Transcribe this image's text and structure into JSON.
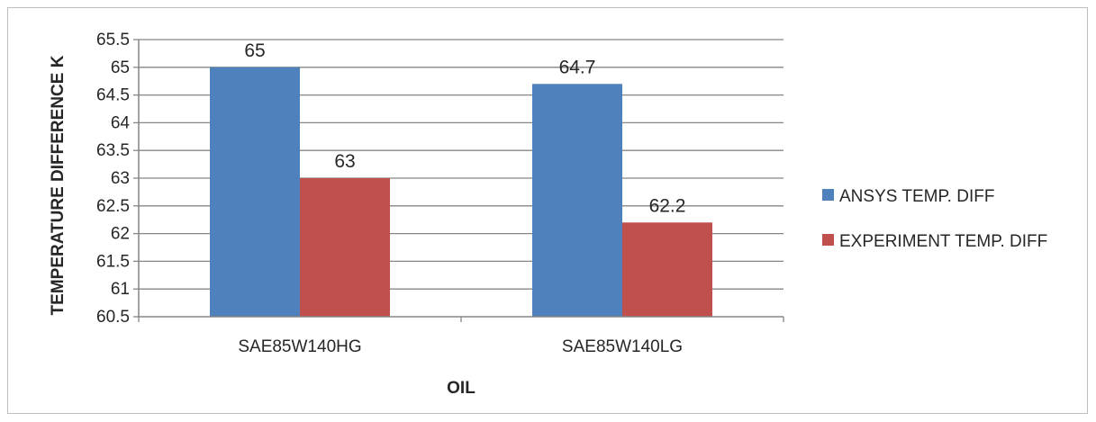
{
  "chart_data": {
    "type": "bar",
    "title": "",
    "xlabel": "OIL",
    "ylabel": "TEMPERATURE DIFFERENCE K",
    "categories": [
      "SAE85W140HG",
      "SAE85W140LG"
    ],
    "series": [
      {
        "name": "ANSYS TEMP. DIFF",
        "values": [
          65,
          64.7
        ],
        "color": "#4F81BD"
      },
      {
        "name": "EXPERIMENT TEMP. DIFF",
        "values": [
          63,
          62.2
        ],
        "color": "#C0504D"
      }
    ],
    "data_labels": [
      [
        "65",
        "64.7"
      ],
      [
        "63",
        "62.2"
      ]
    ],
    "ylim": [
      60.5,
      65.5
    ],
    "yticks": [
      60.5,
      61,
      61.5,
      62,
      62.5,
      63,
      63.5,
      64,
      64.5,
      65,
      65.5
    ],
    "ytick_labels": [
      "60.5",
      "61",
      "61.5",
      "62",
      "62.5",
      "63",
      "63.5",
      "64",
      "64.5",
      "65",
      "65.5"
    ],
    "grid": true,
    "legend_position": "right"
  }
}
